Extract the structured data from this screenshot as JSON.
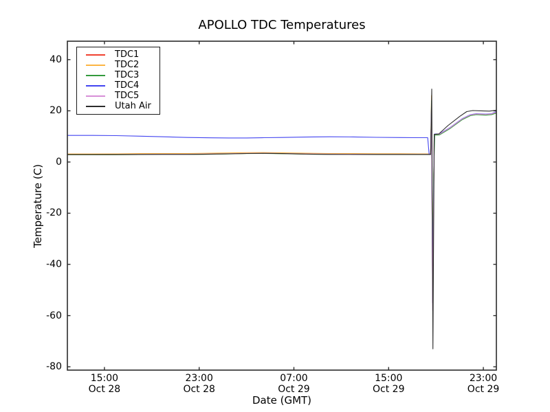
{
  "chart_data": {
    "type": "line",
    "title": "APOLLO TDC Temperatures",
    "xlabel": "Date (GMT)",
    "ylabel": "Temperature (C)",
    "x_unit": "hours since Oct 28 00:00 GMT",
    "xlim": [
      11.87,
      48.1
    ],
    "ylim": [
      -81.3,
      47.2
    ],
    "grid": false,
    "legend_position": "upper-left",
    "axis_color": "#2b2b2b",
    "background": "#ffffff",
    "yticks": [
      40,
      20,
      0,
      -20,
      -40,
      -60,
      -80
    ],
    "xticks": [
      {
        "t": 15,
        "time": "15:00",
        "date": "Oct 28"
      },
      {
        "t": 23,
        "time": "23:00",
        "date": "Oct 28"
      },
      {
        "t": 31,
        "time": "07:00",
        "date": "Oct 29"
      },
      {
        "t": 39,
        "time": "15:00",
        "date": "Oct 29"
      },
      {
        "t": 47,
        "time": "23:00",
        "date": "Oct 29"
      }
    ],
    "series": [
      {
        "name": "TDC1",
        "color": "#f0402f",
        "points": [
          [
            11.9,
            2.85
          ],
          [
            14,
            2.85
          ],
          [
            16,
            2.9
          ],
          [
            18,
            2.95
          ],
          [
            20,
            3.0
          ],
          [
            22,
            3.0
          ],
          [
            24,
            3.1
          ],
          [
            25.5,
            3.2
          ],
          [
            27,
            3.35
          ],
          [
            28.5,
            3.4
          ],
          [
            30,
            3.3
          ],
          [
            32,
            3.15
          ],
          [
            34,
            3.05
          ],
          [
            36,
            3.0
          ],
          [
            38,
            2.95
          ],
          [
            40,
            2.95
          ],
          [
            41.5,
            2.95
          ],
          [
            42.3,
            2.95
          ],
          [
            42.55,
            2.95
          ],
          [
            42.62,
            22
          ],
          [
            42.72,
            -55
          ],
          [
            42.85,
            10.6
          ],
          [
            43.3,
            10.7
          ],
          [
            44.2,
            13.2
          ],
          [
            45.2,
            16.6
          ],
          [
            45.9,
            18.2
          ],
          [
            46.4,
            18.6
          ],
          [
            47.2,
            18.4
          ],
          [
            47.7,
            18.6
          ],
          [
            48.1,
            19.3
          ]
        ]
      },
      {
        "name": "TDC2",
        "color": "#fcb441",
        "points": [
          [
            11.9,
            3.15
          ],
          [
            14,
            3.15
          ],
          [
            16,
            3.2
          ],
          [
            18,
            3.3
          ],
          [
            20,
            3.35
          ],
          [
            22,
            3.35
          ],
          [
            24,
            3.45
          ],
          [
            25.5,
            3.55
          ],
          [
            27,
            3.65
          ],
          [
            28.5,
            3.7
          ],
          [
            30,
            3.6
          ],
          [
            32,
            3.45
          ],
          [
            34,
            3.35
          ],
          [
            36,
            3.3
          ],
          [
            38,
            3.25
          ],
          [
            40,
            3.25
          ],
          [
            41.5,
            3.2
          ],
          [
            42.3,
            3.2
          ],
          [
            42.55,
            3.2
          ],
          [
            42.62,
            26
          ],
          [
            42.72,
            -43
          ],
          [
            42.85,
            10.7
          ],
          [
            43.3,
            10.8
          ],
          [
            44.2,
            13.3
          ],
          [
            45.2,
            16.7
          ],
          [
            45.9,
            18.3
          ],
          [
            46.4,
            18.7
          ],
          [
            47.2,
            18.5
          ],
          [
            47.7,
            18.7
          ],
          [
            48.1,
            19.4
          ]
        ]
      },
      {
        "name": "TDC3",
        "color": "#339a3c",
        "points": [
          [
            11.9,
            2.8
          ],
          [
            14,
            2.8
          ],
          [
            16,
            2.85
          ],
          [
            18,
            2.9
          ],
          [
            20,
            2.95
          ],
          [
            22,
            2.95
          ],
          [
            24,
            3.05
          ],
          [
            25.5,
            3.15
          ],
          [
            27,
            3.3
          ],
          [
            28.5,
            3.35
          ],
          [
            30,
            3.25
          ],
          [
            32,
            3.1
          ],
          [
            34,
            3.0
          ],
          [
            36,
            2.95
          ],
          [
            38,
            2.9
          ],
          [
            40,
            2.9
          ],
          [
            41.5,
            2.9
          ],
          [
            42.3,
            2.9
          ],
          [
            42.55,
            2.9
          ],
          [
            42.62,
            24
          ],
          [
            42.72,
            -46
          ],
          [
            42.8,
            -4.5
          ],
          [
            42.9,
            10.5
          ],
          [
            43.3,
            10.6
          ],
          [
            44.2,
            13.1
          ],
          [
            45.2,
            16.5
          ],
          [
            45.9,
            18.1
          ],
          [
            46.4,
            18.5
          ],
          [
            47.2,
            18.3
          ],
          [
            47.7,
            18.5
          ],
          [
            48.1,
            19.1
          ]
        ]
      },
      {
        "name": "TDC4",
        "color": "#4143f0",
        "points": [
          [
            11.9,
            10.4
          ],
          [
            14,
            10.4
          ],
          [
            16,
            10.3
          ],
          [
            18,
            10.1
          ],
          [
            20,
            9.85
          ],
          [
            22,
            9.6
          ],
          [
            24,
            9.45
          ],
          [
            25.5,
            9.4
          ],
          [
            27,
            9.4
          ],
          [
            28.5,
            9.5
          ],
          [
            30,
            9.6
          ],
          [
            32,
            9.75
          ],
          [
            34,
            9.85
          ],
          [
            36,
            9.8
          ],
          [
            38,
            9.65
          ],
          [
            40,
            9.55
          ],
          [
            41.5,
            9.5
          ],
          [
            42.3,
            9.5
          ],
          [
            42.42,
            3.1
          ],
          [
            42.55,
            3.1
          ],
          [
            42.62,
            21
          ],
          [
            42.72,
            -55
          ],
          [
            42.85,
            10.9
          ],
          [
            43.3,
            11.0
          ],
          [
            44.2,
            13.5
          ],
          [
            45.2,
            16.9
          ],
          [
            45.9,
            18.5
          ],
          [
            46.4,
            18.9
          ],
          [
            47.2,
            18.7
          ],
          [
            47.7,
            18.9
          ],
          [
            48.1,
            19.7
          ]
        ]
      },
      {
        "name": "TDC5",
        "color": "#d78ed7",
        "points": [
          [
            11.9,
            2.9
          ],
          [
            14,
            2.9
          ],
          [
            16,
            2.95
          ],
          [
            18,
            3.0
          ],
          [
            20,
            3.05
          ],
          [
            22,
            3.05
          ],
          [
            24,
            3.15
          ],
          [
            25.5,
            3.25
          ],
          [
            27,
            3.4
          ],
          [
            28.5,
            3.45
          ],
          [
            30,
            3.35
          ],
          [
            32,
            3.2
          ],
          [
            34,
            3.1
          ],
          [
            36,
            3.05
          ],
          [
            38,
            3.0
          ],
          [
            40,
            3.0
          ],
          [
            41.5,
            3.0
          ],
          [
            42.3,
            3.0
          ],
          [
            42.55,
            3.0
          ],
          [
            42.62,
            22
          ],
          [
            42.72,
            -58
          ],
          [
            42.85,
            10.8
          ],
          [
            43.3,
            10.9
          ],
          [
            44.2,
            13.4
          ],
          [
            45.2,
            16.8
          ],
          [
            45.9,
            18.4
          ],
          [
            46.4,
            18.8
          ],
          [
            47.2,
            18.6
          ],
          [
            47.7,
            18.8
          ],
          [
            48.1,
            19.5
          ]
        ]
      },
      {
        "name": "Utah Air",
        "color": "#2b2b2b",
        "points": [
          [
            11.9,
            2.9
          ],
          [
            14,
            2.9
          ],
          [
            16,
            2.9
          ],
          [
            18,
            2.95
          ],
          [
            20,
            3.0
          ],
          [
            22,
            3.0
          ],
          [
            24,
            3.1
          ],
          [
            25.5,
            3.2
          ],
          [
            27,
            3.35
          ],
          [
            28.5,
            3.4
          ],
          [
            30,
            3.3
          ],
          [
            32,
            3.1
          ],
          [
            34,
            3.0
          ],
          [
            36,
            2.95
          ],
          [
            38,
            2.95
          ],
          [
            40,
            2.95
          ],
          [
            41.5,
            2.95
          ],
          [
            42.3,
            2.95
          ],
          [
            42.55,
            2.95
          ],
          [
            42.64,
            28.5
          ],
          [
            42.74,
            -73
          ],
          [
            42.85,
            10.8
          ],
          [
            43.25,
            11.0
          ],
          [
            44.0,
            14.2
          ],
          [
            45.0,
            17.8
          ],
          [
            45.6,
            19.7
          ],
          [
            46.1,
            20.1
          ],
          [
            46.8,
            20.0
          ],
          [
            47.5,
            19.9
          ],
          [
            48.1,
            20.2
          ]
        ]
      }
    ]
  }
}
